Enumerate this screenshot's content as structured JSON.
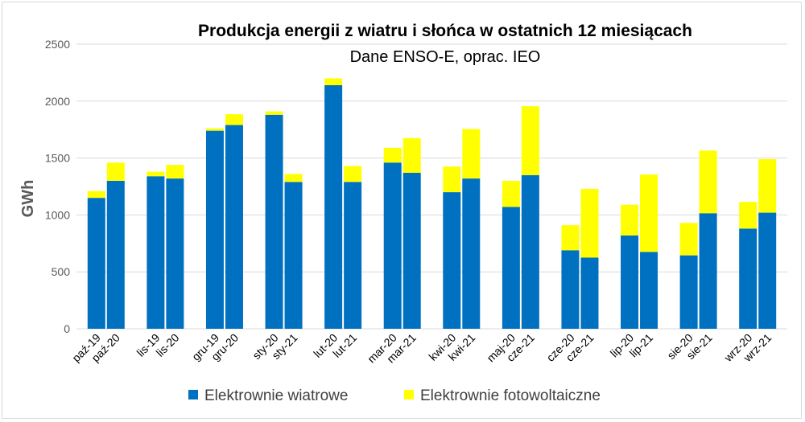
{
  "chart_data": {
    "type": "bar",
    "stacked": true,
    "title": "Produkcja energii z wiatru i słońca w ostatnich 12 miesiącach",
    "subtitle": "Dane ENSO-E, oprac. IEO",
    "ylabel": "GWh",
    "ylim": [
      0,
      2500
    ],
    "yticks": [
      0,
      500,
      1000,
      1500,
      2000,
      2500
    ],
    "grid": true,
    "legend_position": "bottom",
    "categories": [
      "paź-19",
      "paź-20",
      "lis-19",
      "lis-20",
      "gru-19",
      "gru-20",
      "sty-20",
      "sty-21",
      "lut-20",
      "lut-21",
      "mar-20",
      "mar-21",
      "kwi-20",
      "kwi-21",
      "maj-20",
      "cze-21",
      "cze-20",
      "cze-21",
      "lip-20",
      "lip-21",
      "sie-20",
      "sie-21",
      "wrz-20",
      "wrz-21"
    ],
    "series": [
      {
        "name": "Elektrownie wiatrowe",
        "color": "#0070c0",
        "values": [
          1150,
          1300,
          1340,
          1320,
          1740,
          1790,
          1880,
          1290,
          2140,
          1290,
          1460,
          1370,
          1200,
          1320,
          1070,
          1350,
          690,
          625,
          820,
          675,
          645,
          1015,
          880,
          1020
        ]
      },
      {
        "name": "Elektrownie fotowoltaiczne",
        "color": "#ffff00",
        "values": [
          60,
          160,
          40,
          120,
          20,
          95,
          30,
          70,
          60,
          140,
          130,
          305,
          225,
          435,
          230,
          605,
          220,
          605,
          270,
          680,
          285,
          550,
          235,
          470
        ]
      }
    ]
  }
}
